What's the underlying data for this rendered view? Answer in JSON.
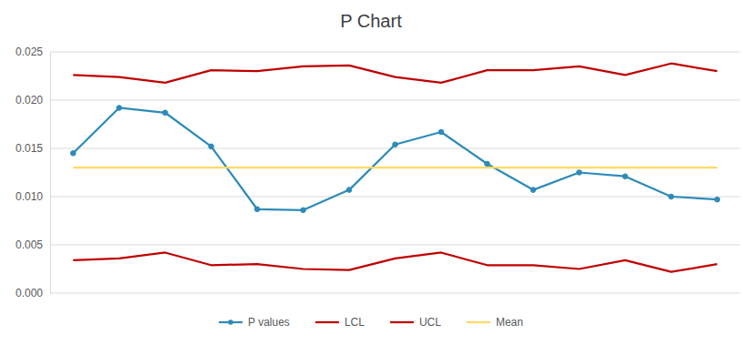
{
  "chart_data": {
    "type": "line",
    "title": "P Chart",
    "categories": [
      null,
      null,
      null,
      null,
      null,
      null,
      null,
      null,
      null,
      null,
      null,
      null,
      null,
      null,
      null
    ],
    "series": [
      {
        "name": "P values",
        "color": "#2e8bb8",
        "marker": "circle",
        "values": [
          0.0145,
          0.0192,
          0.0187,
          0.0152,
          0.0087,
          0.0086,
          0.0107,
          0.0154,
          0.0167,
          0.0134,
          0.0107,
          0.0125,
          0.0121,
          0.01,
          0.0097
        ]
      },
      {
        "name": "LCL",
        "color": "#c00000",
        "values": [
          0.0034,
          0.0036,
          0.0042,
          0.0029,
          0.003,
          0.0025,
          0.0024,
          0.0036,
          0.0042,
          0.0029,
          0.0029,
          0.0025,
          0.0034,
          0.0022,
          0.003
        ]
      },
      {
        "name": "UCL",
        "color": "#c00000",
        "values": [
          0.0226,
          0.0224,
          0.0218,
          0.0231,
          0.023,
          0.0235,
          0.0236,
          0.0224,
          0.0218,
          0.0231,
          0.0231,
          0.0235,
          0.0226,
          0.0238,
          0.023
        ]
      },
      {
        "name": "Mean",
        "color": "#ffd966",
        "values": [
          0.013,
          0.013,
          0.013,
          0.013,
          0.013,
          0.013,
          0.013,
          0.013,
          0.013,
          0.013,
          0.013,
          0.013,
          0.013,
          0.013,
          0.013
        ]
      }
    ],
    "ylim": [
      0,
      0.025
    ],
    "yticks": [
      {
        "value": 0,
        "label": "0.000"
      },
      {
        "value": 0.005,
        "label": "0.005"
      },
      {
        "value": 0.01,
        "label": "0.010"
      },
      {
        "value": 0.015,
        "label": "0.015"
      },
      {
        "value": 0.02,
        "label": "0.020"
      },
      {
        "value": 0.025,
        "label": "0.025"
      }
    ],
    "grid": true,
    "legend": "bottom",
    "tick_labels": "y"
  }
}
